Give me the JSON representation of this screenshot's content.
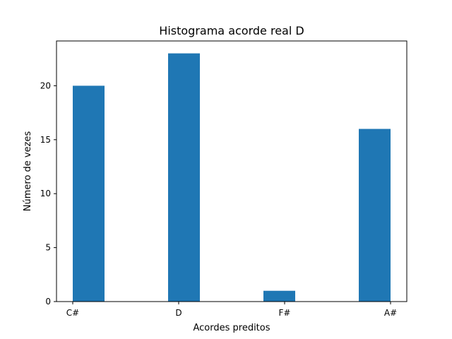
{
  "chart_data": {
    "type": "bar",
    "title": "Histograma acorde real D",
    "xlabel": "Acordes preditos",
    "ylabel": "Número de vezes",
    "categories": [
      "C#",
      "D",
      "F#",
      "A#"
    ],
    "x_ticks": [
      "C#",
      "D",
      "F#",
      "A#"
    ],
    "values": [
      20,
      23,
      1,
      16
    ],
    "y_ticks": [
      0,
      5,
      10,
      15,
      20
    ],
    "ylim": [
      0,
      24.15
    ],
    "grid": false,
    "legend": "none",
    "colors": {
      "bar": "#1f77b4"
    }
  }
}
